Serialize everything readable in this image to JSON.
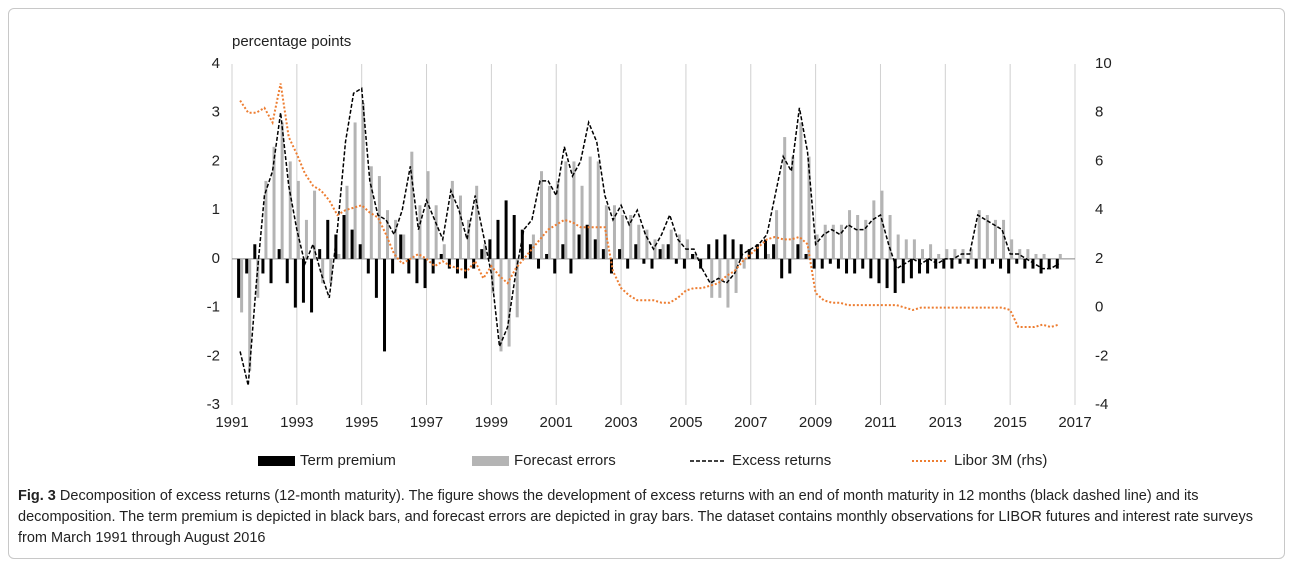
{
  "chart_data": {
    "type": "combo",
    "y_label": "percentage points",
    "x": [
      1991.25,
      1991.5,
      1991.75,
      1992,
      1992.25,
      1992.5,
      1992.75,
      1993,
      1993.25,
      1993.5,
      1993.75,
      1994,
      1994.25,
      1994.5,
      1994.75,
      1995,
      1995.25,
      1995.5,
      1995.75,
      1996,
      1996.25,
      1996.5,
      1996.75,
      1997,
      1997.25,
      1997.5,
      1997.75,
      1998,
      1998.25,
      1998.5,
      1998.75,
      1999,
      1999.25,
      1999.5,
      1999.75,
      2000,
      2000.25,
      2000.5,
      2000.75,
      2001,
      2001.25,
      2001.5,
      2001.75,
      2002,
      2002.25,
      2002.5,
      2002.75,
      2003,
      2003.25,
      2003.5,
      2003.75,
      2004,
      2004.25,
      2004.5,
      2004.75,
      2005,
      2005.25,
      2005.5,
      2005.75,
      2006,
      2006.25,
      2006.5,
      2006.75,
      2007,
      2007.25,
      2007.5,
      2007.75,
      2008,
      2008.25,
      2008.5,
      2008.75,
      2009,
      2009.25,
      2009.5,
      2009.75,
      2010,
      2010.25,
      2010.5,
      2010.75,
      2011,
      2011.25,
      2011.5,
      2011.75,
      2012,
      2012.25,
      2012.5,
      2012.75,
      2013,
      2013.25,
      2013.5,
      2013.75,
      2014,
      2014.25,
      2014.5,
      2014.75,
      2015,
      2015.25,
      2015.5,
      2015.75,
      2016,
      2016.25,
      2016.5
    ],
    "series": [
      {
        "name": "Term premium",
        "color": "#000000",
        "kind": "bar",
        "values": [
          -0.8,
          -0.3,
          0.3,
          -0.3,
          -0.5,
          0.2,
          -0.5,
          -1.0,
          -0.9,
          -1.1,
          0.2,
          0.8,
          0.5,
          0.9,
          0.6,
          0.3,
          -0.3,
          -0.8,
          -1.9,
          -0.3,
          0.5,
          -0.3,
          -0.5,
          -0.6,
          -0.3,
          0.1,
          -0.2,
          -0.3,
          -0.4,
          -0.2,
          0.2,
          0.4,
          0.8,
          1.2,
          0.9,
          0.6,
          0.3,
          -0.2,
          0.1,
          -0.3,
          0.3,
          -0.3,
          0.5,
          0.7,
          0.4,
          0.2,
          -0.3,
          0.2,
          -0.2,
          0.3,
          -0.1,
          -0.2,
          0.2,
          0.3,
          -0.1,
          -0.2,
          0.1,
          -0.2,
          0.3,
          0.4,
          0.5,
          0.4,
          0.3,
          0.2,
          0.3,
          0.4,
          0.3,
          -0.4,
          -0.3,
          0.3,
          0.1,
          -0.2,
          -0.2,
          -0.1,
          -0.2,
          -0.3,
          -0.3,
          -0.2,
          -0.4,
          -0.5,
          -0.6,
          -0.7,
          -0.5,
          -0.4,
          -0.3,
          -0.3,
          -0.2,
          -0.2,
          -0.2,
          -0.1,
          -0.1,
          -0.2,
          -0.2,
          -0.1,
          -0.2,
          -0.3,
          -0.1,
          -0.2,
          -0.2,
          -0.3,
          -0.2,
          -0.2
        ]
      },
      {
        "name": "Forecast errors",
        "color": "#b4b4b4",
        "kind": "bar",
        "values": [
          -1.1,
          -2.3,
          -0.8,
          1.6,
          2.3,
          2.8,
          2.0,
          1.6,
          0.8,
          1.4,
          -0.5,
          -0.5,
          0.1,
          1.5,
          2.8,
          3.2,
          1.9,
          1.7,
          1.0,
          0.8,
          0.5,
          2.2,
          1.1,
          1.8,
          1.1,
          0.3,
          1.6,
          1.3,
          0.8,
          1.5,
          0.3,
          -0.7,
          -1.9,
          -1.8,
          -1.2,
          0.0,
          0.5,
          1.8,
          1.5,
          1.6,
          2.0,
          2.0,
          1.5,
          2.1,
          2.0,
          1.1,
          1.1,
          0.9,
          0.9,
          0.7,
          0.6,
          0.4,
          0.3,
          0.6,
          0.5,
          0.4,
          0.1,
          0.0,
          -0.8,
          -0.8,
          -1.0,
          -0.7,
          -0.2,
          0.0,
          0.0,
          0.1,
          1.0,
          2.5,
          2.1,
          2.8,
          2.1,
          0.5,
          0.7,
          0.7,
          0.7,
          1.0,
          0.9,
          0.8,
          1.2,
          1.4,
          0.9,
          0.5,
          0.4,
          0.4,
          0.2,
          0.3,
          0.1,
          0.2,
          0.2,
          0.2,
          0.2,
          1.0,
          0.9,
          0.8,
          0.8,
          0.4,
          0.2,
          0.2,
          0.1,
          0.1,
          0.0,
          0.1
        ]
      },
      {
        "name": "Excess returns",
        "color": "#000000",
        "kind": "line",
        "dash": "dashed",
        "values": [
          -1.9,
          -2.6,
          -0.5,
          1.3,
          1.8,
          3.0,
          1.5,
          0.6,
          -0.1,
          0.3,
          -0.3,
          -0.8,
          0.6,
          2.4,
          3.4,
          3.5,
          1.6,
          0.9,
          0.8,
          0.5,
          1.0,
          1.9,
          0.6,
          1.2,
          0.8,
          0.4,
          1.4,
          1.0,
          0.4,
          1.3,
          0.5,
          -0.3,
          -1.8,
          -1.4,
          -0.3,
          0.6,
          0.8,
          1.6,
          1.6,
          1.3,
          2.3,
          1.7,
          2.0,
          2.8,
          2.4,
          1.3,
          0.8,
          1.1,
          0.7,
          1.0,
          0.5,
          0.2,
          0.5,
          0.9,
          0.4,
          0.2,
          0.2,
          -0.2,
          -0.5,
          -0.4,
          -0.5,
          -0.3,
          0.1,
          0.2,
          0.3,
          0.5,
          1.3,
          2.1,
          1.8,
          3.1,
          2.2,
          0.3,
          0.5,
          0.6,
          0.5,
          0.7,
          0.6,
          0.6,
          0.8,
          0.9,
          0.3,
          -0.2,
          -0.1,
          0.0,
          -0.1,
          0.0,
          -0.1,
          0.0,
          0.0,
          0.1,
          0.1,
          0.9,
          0.8,
          0.7,
          0.6,
          0.1,
          0.1,
          0.0,
          -0.1,
          -0.2,
          -0.2,
          -0.1
        ]
      },
      {
        "name": "Libor 3M (rhs)",
        "color": "#ed7d31",
        "kind": "line",
        "dash": "dotted",
        "axis": "y2",
        "values": [
          8.5,
          8.0,
          8.0,
          8.2,
          7.6,
          9.2,
          7.0,
          6.3,
          5.5,
          5.0,
          4.8,
          4.4,
          3.8,
          4.0,
          4.1,
          4.2,
          3.9,
          3.7,
          3.0,
          2.2,
          1.8,
          2.0,
          2.2,
          2.0,
          1.7,
          1.9,
          1.7,
          1.6,
          1.5,
          1.9,
          1.2,
          1.7,
          1.3,
          1.0,
          1.6,
          2.0,
          2.4,
          2.8,
          3.2,
          3.4,
          3.6,
          3.5,
          3.3,
          3.3,
          3.3,
          3.3,
          1.5,
          0.8,
          0.5,
          0.3,
          0.3,
          0.3,
          0.2,
          0.2,
          0.4,
          0.7,
          0.8,
          0.8,
          0.9,
          1.0,
          1.3,
          1.5,
          1.9,
          2.2,
          2.5,
          2.8,
          2.9,
          2.8,
          2.8,
          2.9,
          2.6,
          0.6,
          0.3,
          0.2,
          0.2,
          0.1,
          0.1,
          0.1,
          0.1,
          0.1,
          0.1,
          0.1,
          0.0,
          -0.1,
          0.0,
          0.0,
          0.0,
          0.0,
          0.0,
          0.0,
          0.0,
          0.0,
          0.0,
          0.0,
          0.0,
          -0.1,
          -0.8,
          -0.8,
          -0.8,
          -0.7,
          -0.8,
          -0.7
        ]
      }
    ],
    "xlim": [
      1991,
      2017
    ],
    "xticks": [
      1991,
      1993,
      1995,
      1997,
      1999,
      2001,
      2003,
      2005,
      2007,
      2009,
      2011,
      2013,
      2015,
      2017
    ],
    "ylim": [
      -3,
      4
    ],
    "yticks": [
      -3,
      -2,
      -1,
      0,
      1,
      2,
      3,
      4
    ],
    "y2lim": [
      -4,
      10
    ],
    "y2ticks": [
      -4,
      -2,
      0,
      2,
      4,
      6,
      8,
      10
    ],
    "grid": "x",
    "legend": "bottom",
    "caption": {
      "label": "Fig. 3",
      "text": "Decomposition of excess returns (12-month maturity). The figure shows the development of excess returns with an end of month maturity in 12 months (black dashed line) and its decomposition. The term premium is depicted in black bars, and forecast errors are depicted in gray bars. The dataset contains monthly observations for LIBOR futures and interest rate surveys from March 1991 through August 2016"
    }
  }
}
